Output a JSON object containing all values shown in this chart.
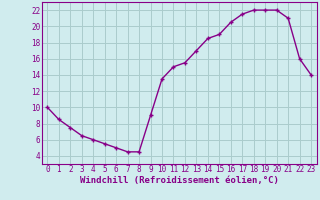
{
  "x": [
    0,
    1,
    2,
    3,
    4,
    5,
    6,
    7,
    8,
    9,
    10,
    11,
    12,
    13,
    14,
    15,
    16,
    17,
    18,
    19,
    20,
    21,
    22,
    23
  ],
  "y": [
    10,
    8.5,
    7.5,
    6.5,
    6,
    5.5,
    5,
    4.5,
    4.5,
    9,
    13.5,
    15,
    15.5,
    17,
    18.5,
    19,
    20.5,
    21.5,
    22,
    22,
    22,
    21,
    16,
    14
  ],
  "line_color": "#880088",
  "marker": "+",
  "bg_color": "#d0ecee",
  "grid_color": "#aacccc",
  "xlabel": "Windchill (Refroidissement éolien,°C)",
  "ylim": [
    3,
    23
  ],
  "xlim": [
    -0.5,
    23.5
  ],
  "yticks": [
    4,
    6,
    8,
    10,
    12,
    14,
    16,
    18,
    20,
    22
  ],
  "xticks": [
    0,
    1,
    2,
    3,
    4,
    5,
    6,
    7,
    8,
    9,
    10,
    11,
    12,
    13,
    14,
    15,
    16,
    17,
    18,
    19,
    20,
    21,
    22,
    23
  ],
  "line_width": 1.0,
  "marker_size": 3.5,
  "xlabel_fontsize": 6.5,
  "tick_fontsize": 5.5
}
